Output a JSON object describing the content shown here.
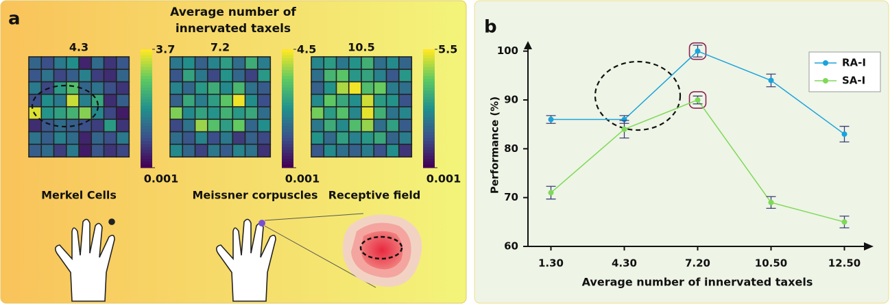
{
  "panel_a": {
    "label": "a",
    "title": [
      "Average number of",
      "innervated taxels"
    ],
    "heatmaps": [
      {
        "avg_taxels": 4.3,
        "name": "Merkel Cells",
        "colorbar_ticks": [
          3.7,
          0.001
        ],
        "vmin": 0.001,
        "vmax": 3.7,
        "values": [
          [
            1.2,
            0.9,
            1.5,
            1.8,
            0.4,
            1.3,
            0.6,
            1.0
          ],
          [
            1.0,
            1.4,
            0.8,
            1.1,
            1.6,
            0.7,
            0.5,
            1.2
          ],
          [
            1.5,
            0.8,
            2.0,
            2.6,
            1.2,
            1.4,
            0.9,
            0.6
          ],
          [
            0.9,
            1.8,
            1.5,
            3.4,
            1.6,
            2.2,
            0.5,
            1.1
          ],
          [
            3.5,
            1.9,
            2.1,
            2.4,
            3.0,
            1.7,
            0.8,
            0.3
          ],
          [
            0.5,
            1.0,
            1.3,
            1.1,
            0.9,
            0.7,
            2.0,
            0.6
          ],
          [
            1.4,
            1.1,
            1.6,
            1.3,
            0.4,
            1.2,
            0.9,
            1.5
          ],
          [
            1.1,
            1.3,
            0.7,
            1.5,
            0.3,
            1.0,
            0.6,
            0.8
          ]
        ]
      },
      {
        "avg_taxels": 7.2,
        "name": "Meissner corpuscles",
        "colorbar_ticks": [
          4.5,
          0.001
        ],
        "vmin": 0.001,
        "vmax": 4.5,
        "values": [
          [
            1.8,
            2.2,
            1.4,
            2.0,
            2.5,
            1.6,
            2.8,
            1.9
          ],
          [
            1.2,
            2.6,
            1.8,
            1.0,
            2.3,
            1.5,
            0.9,
            2.4
          ],
          [
            2.0,
            1.5,
            2.4,
            2.8,
            2.1,
            3.0,
            1.7,
            1.3
          ],
          [
            1.4,
            2.7,
            1.9,
            2.5,
            3.3,
            4.4,
            2.2,
            1.1
          ],
          [
            3.6,
            2.1,
            2.6,
            2.3,
            2.9,
            2.4,
            2.7,
            1.6
          ],
          [
            1.0,
            1.7,
            3.8,
            3.2,
            2.5,
            3.4,
            1.5,
            2.2
          ],
          [
            1.6,
            1.2,
            2.0,
            1.1,
            1.8,
            0.8,
            1.4,
            1.0
          ],
          [
            2.1,
            1.5,
            0.9,
            1.8,
            1.3,
            2.0,
            1.7,
            0.7
          ]
        ]
      },
      {
        "avg_taxels": 10.5,
        "name": "Receptive field",
        "colorbar_ticks": [
          5.5,
          0.001
        ],
        "vmin": 0.001,
        "vmax": 5.5,
        "values": [
          [
            2.5,
            3.0,
            2.2,
            2.8,
            3.5,
            2.0,
            2.6,
            1.8
          ],
          [
            2.0,
            3.6,
            4.0,
            2.9,
            3.2,
            2.4,
            1.5,
            2.9
          ],
          [
            1.7,
            2.8,
            4.8,
            5.4,
            3.8,
            4.2,
            2.3,
            2.0
          ],
          [
            2.6,
            4.1,
            3.3,
            2.7,
            5.1,
            3.0,
            2.8,
            1.4
          ],
          [
            4.3,
            3.0,
            3.9,
            2.5,
            5.3,
            3.5,
            2.1,
            2.5
          ],
          [
            2.2,
            3.4,
            2.6,
            3.8,
            4.6,
            2.0,
            3.1,
            1.6
          ],
          [
            2.8,
            1.9,
            3.1,
            2.4,
            2.9,
            3.3,
            1.8,
            2.3
          ],
          [
            1.5,
            2.6,
            2.0,
            1.7,
            2.3,
            1.4,
            2.7,
            0.9
          ]
        ]
      }
    ]
  },
  "chart_data": {
    "type": "line",
    "panel_label": "b",
    "x_label": "Average number of innervated taxels",
    "y_label": "Performance (%)",
    "categories": [
      "1.30",
      "4.30",
      "7.20",
      "10.50",
      "12.50"
    ],
    "series": [
      {
        "name": "RA-I",
        "color": "#1aa3dc",
        "values": [
          86,
          86,
          100,
          94,
          83
        ],
        "errors": [
          0.8,
          0.8,
          1.2,
          1.3,
          1.6
        ]
      },
      {
        "name": "SA-I",
        "color": "#7ed957",
        "values": [
          71,
          84,
          90,
          69,
          65
        ],
        "errors": [
          1.3,
          1.8,
          0.8,
          1.2,
          1.2
        ]
      }
    ],
    "error_color": "#3b3f78",
    "ylim": [
      60,
      101.5
    ],
    "yticks": [
      60,
      70,
      80,
      90,
      100
    ],
    "legend": "upper right"
  }
}
